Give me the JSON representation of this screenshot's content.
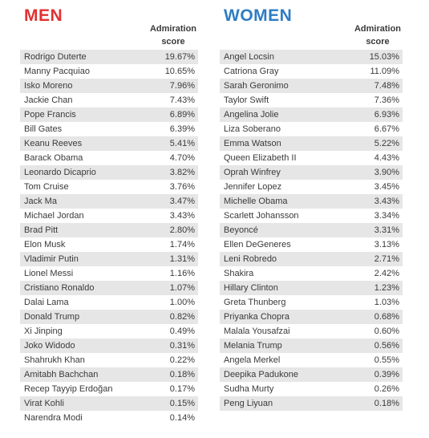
{
  "chart_data": [
    {
      "type": "table",
      "title": "MEN",
      "column_header": "Admiration score",
      "categories": [
        "Rodrigo Duterte",
        "Manny Pacquiao",
        "Isko Moreno",
        "Jackie Chan",
        "Pope Francis",
        "Bill Gates",
        "Keanu Reeves",
        "Barack Obama",
        "Leonardo Dicaprio",
        "Tom Cruise",
        "Jack Ma",
        "Michael Jordan",
        "Brad Pitt",
        "Elon Musk",
        "Vladimir Putin",
        "Lionel Messi",
        "Cristiano Ronaldo",
        "Dalai Lama",
        "Donald Trump",
        "Xi Jinping",
        "Joko Widodo",
        "Shahrukh Khan",
        "Amitabh Bachchan",
        "Recep Tayyip Erdoğan",
        "Virat Kohli",
        "Narendra Modi"
      ],
      "values": [
        "19.67%",
        "10.65%",
        "7.96%",
        "7.43%",
        "6.89%",
        "6.39%",
        "5.41%",
        "4.70%",
        "3.82%",
        "3.76%",
        "3.47%",
        "3.43%",
        "2.80%",
        "1.74%",
        "1.31%",
        "1.16%",
        "1.07%",
        "1.00%",
        "0.82%",
        "0.49%",
        "0.31%",
        "0.22%",
        "0.18%",
        "0.17%",
        "0.15%",
        "0.14%"
      ]
    },
    {
      "type": "table",
      "title": "WOMEN",
      "column_header": "Admiration score",
      "categories": [
        "Angel Locsin",
        "Catriona Gray",
        "Sarah Geronimo",
        "Taylor Swift",
        "Angelina Jolie",
        "Liza Soberano",
        "Emma Watson",
        "Queen Elizabeth II",
        "Oprah Winfrey",
        "Jennifer Lopez",
        "Michelle Obama",
        "Scarlett Johansson",
        "Beyoncé",
        "Ellen DeGeneres",
        "Leni Robredo",
        "Shakira",
        "Hillary Clinton",
        "Greta Thunberg",
        "Priyanka Chopra",
        "Malala Yousafzai",
        "Melania Trump",
        "Angela Merkel",
        "Deepika Padukone",
        "Sudha Murty",
        "Peng Liyuan"
      ],
      "values": [
        "15.03%",
        "11.09%",
        "7.48%",
        "7.36%",
        "6.93%",
        "6.67%",
        "5.22%",
        "4.43%",
        "3.90%",
        "3.45%",
        "3.43%",
        "3.34%",
        "3.31%",
        "3.13%",
        "2.71%",
        "2.42%",
        "1.23%",
        "1.03%",
        "0.68%",
        "0.60%",
        "0.56%",
        "0.55%",
        "0.39%",
        "0.26%",
        "0.18%"
      ]
    }
  ],
  "colors": {
    "men_heading": "#e03131",
    "women_heading": "#2e7cc4",
    "stripe": "#e6e6e6"
  },
  "men": {
    "heading": "MEN",
    "col_line1": "Admiration",
    "col_line2": "score"
  },
  "women": {
    "heading": "WOMEN",
    "col_line1": "Admiration",
    "col_line2": "score"
  }
}
